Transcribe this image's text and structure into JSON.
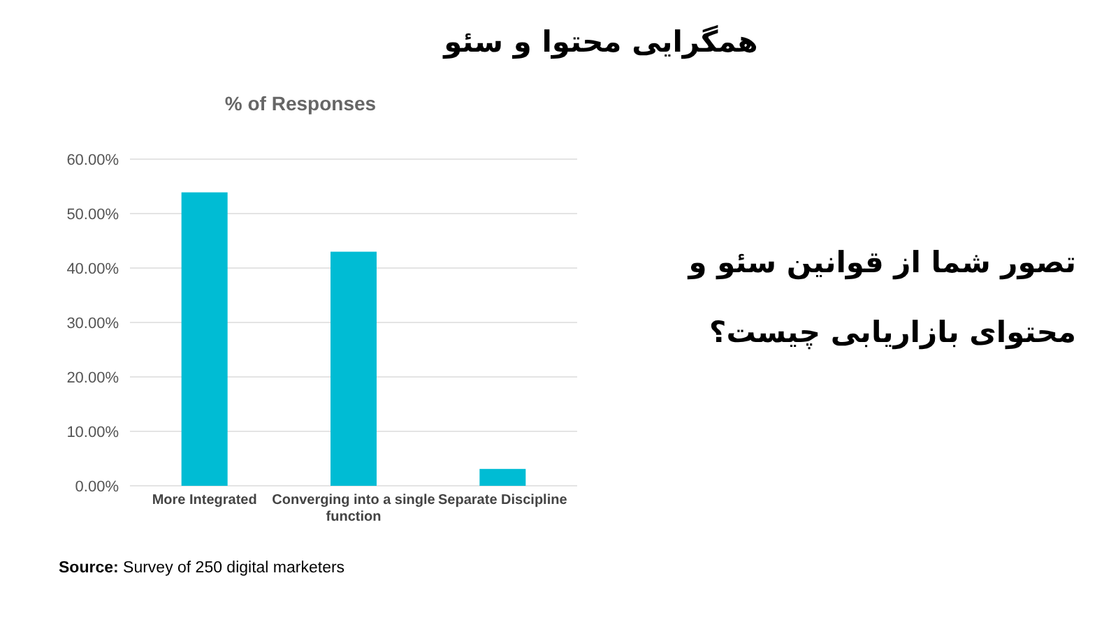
{
  "chart_data": {
    "type": "bar",
    "title": "همگرایی محتوا و سئو",
    "subtitle": "% of Responses",
    "categories": [
      "More Integrated",
      "Converging into a single function",
      "Separate Discipline"
    ],
    "values": [
      53.9,
      43.0,
      3.1
    ],
    "color": "#00bcd4",
    "ylim": [
      0,
      60
    ],
    "yticks": [
      {
        "value": 0,
        "label": "0.00%"
      },
      {
        "value": 10,
        "label": "10.00%"
      },
      {
        "value": 20,
        "label": "20.00%"
      },
      {
        "value": 30,
        "label": "30.00%"
      },
      {
        "value": 40,
        "label": "40.00%"
      },
      {
        "value": 50,
        "label": "50.00%"
      },
      {
        "value": 60,
        "label": "60.00%"
      }
    ],
    "grid": "y",
    "annotations": [
      "تصور شما از قوانین سئو و محتوای بازاریابی چیست؟",
      "**Source:** Survey of 250 digital marketers"
    ]
  }
}
